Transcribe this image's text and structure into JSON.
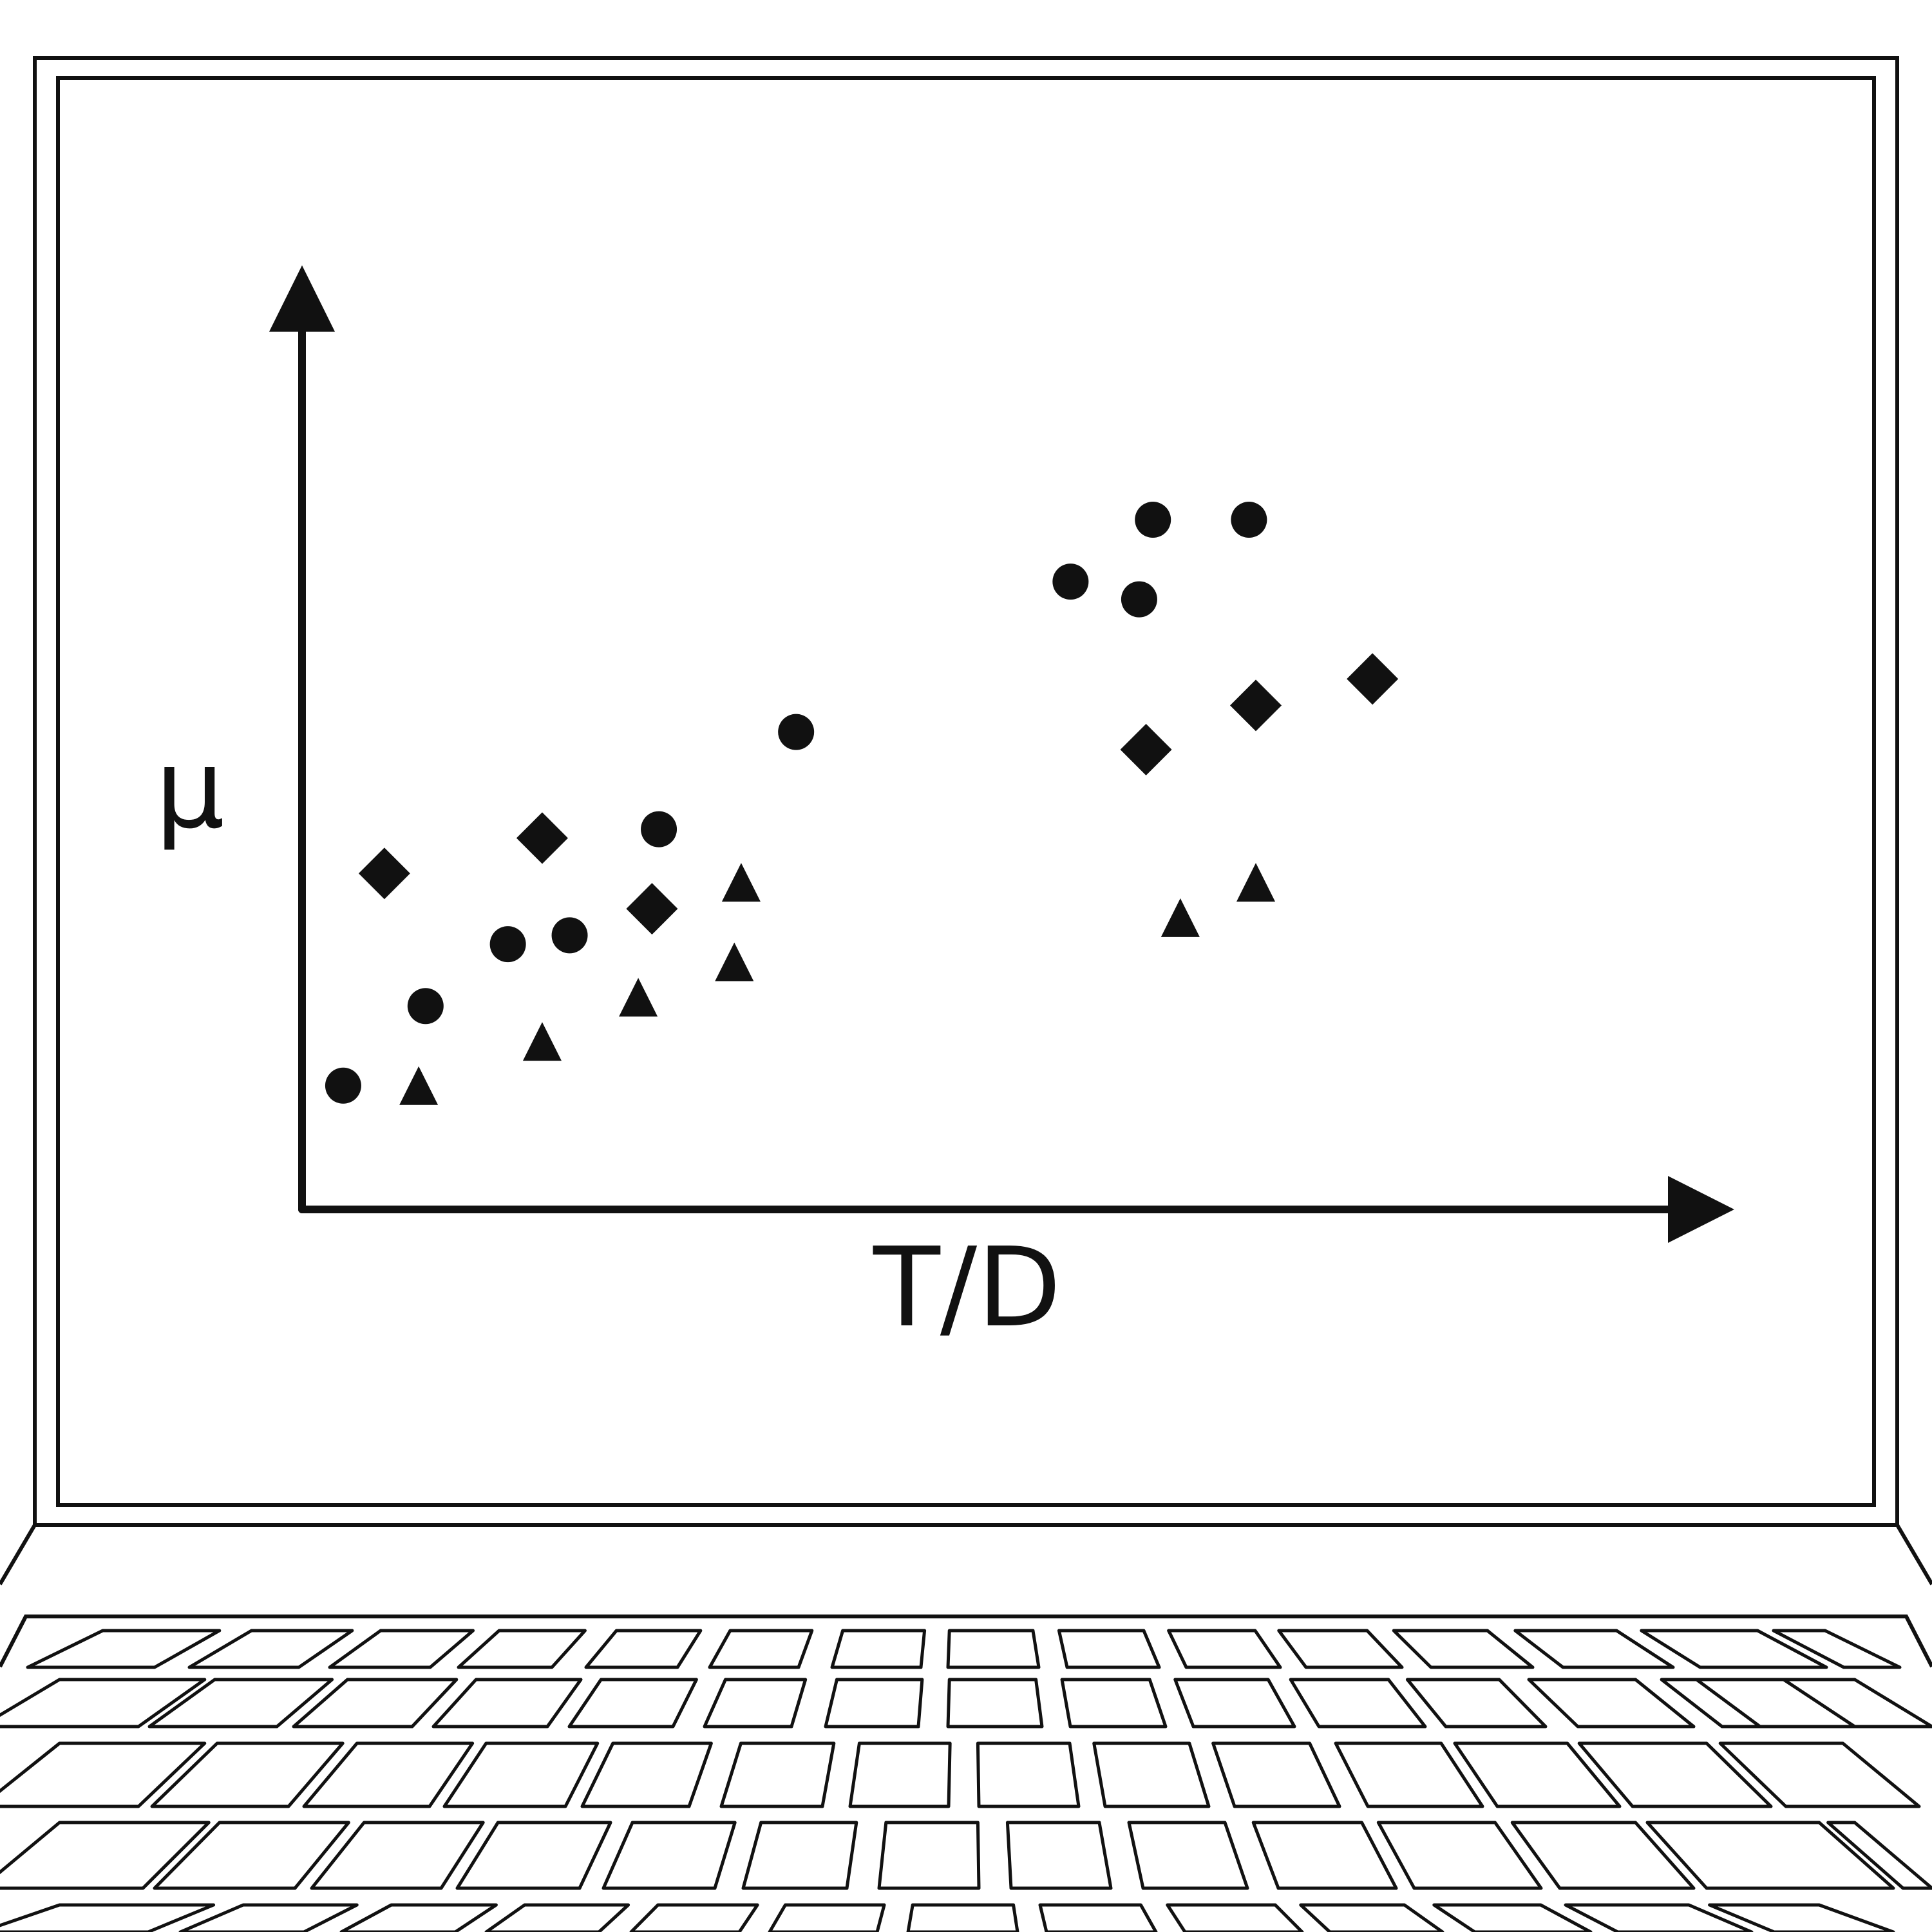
{
  "illustration": "laptop",
  "colors": {
    "ink": "#111111",
    "background": "#ffffff"
  },
  "screen": {
    "chart_data": {
      "type": "scatter",
      "xlabel": "T/D",
      "ylabel": "μ",
      "title": "",
      "grid": false,
      "legend": "none",
      "axis_ticks": false,
      "xlim": [
        0,
        10
      ],
      "ylim": [
        0,
        10
      ],
      "series": [
        {
          "marker": "circle",
          "points": [
            [
              0.3,
              1.4
            ],
            [
              0.9,
              2.3
            ],
            [
              1.5,
              3.0
            ],
            [
              1.95,
              3.1
            ],
            [
              2.6,
              4.3
            ],
            [
              3.6,
              5.4
            ],
            [
              5.6,
              7.1
            ],
            [
              6.1,
              6.9
            ],
            [
              6.2,
              7.8
            ],
            [
              6.9,
              7.8
            ]
          ]
        },
        {
          "marker": "diamond",
          "points": [
            [
              0.6,
              3.8
            ],
            [
              1.75,
              4.2
            ],
            [
              2.55,
              3.4
            ],
            [
              6.15,
              5.2
            ],
            [
              6.95,
              5.7
            ],
            [
              7.8,
              6.0
            ]
          ]
        },
        {
          "marker": "triangle",
          "points": [
            [
              0.85,
              1.4
            ],
            [
              1.75,
              1.9
            ],
            [
              2.45,
              2.4
            ],
            [
              3.15,
              2.8
            ],
            [
              3.2,
              3.7
            ],
            [
              6.4,
              3.3
            ],
            [
              6.95,
              3.7
            ]
          ]
        }
      ]
    }
  },
  "keyboard": {
    "rows": [
      {
        "y": [
          2532,
          2589
        ],
        "keys": [
          [
            43,
            240
          ],
          [
            294,
            464
          ],
          [
            512,
            668
          ],
          [
            712,
            857
          ],
          [
            910,
            1052
          ],
          [
            1102,
            1240
          ],
          [
            1292,
            1430
          ],
          [
            1472,
            1613
          ],
          [
            1657,
            1800
          ],
          [
            1842,
            1988
          ],
          [
            2028,
            2177
          ],
          [
            2222,
            2380
          ],
          [
            2427,
            2598
          ],
          [
            2640,
            2836
          ],
          [
            2863,
            2950
          ]
        ]
      },
      {
        "y": [
          2608,
          2681
        ],
        "keys": [
          [
            -30,
            215
          ],
          [
            232,
            430
          ],
          [
            456,
            640
          ],
          [
            673,
            850
          ],
          [
            884,
            1045
          ],
          [
            1094,
            1229
          ],
          [
            1282,
            1426
          ],
          [
            1472,
            1618
          ],
          [
            1662,
            1810
          ],
          [
            1853,
            2010
          ],
          [
            2048,
            2213
          ],
          [
            2245,
            2400
          ],
          [
            2450,
            2630
          ],
          [
            2674,
            2880
          ],
          [
            2733,
            3000
          ]
        ]
      },
      {
        "y": [
          2707,
          2805
        ],
        "keys": [
          [
            -30,
            215
          ],
          [
            236,
            448
          ],
          [
            472,
            667
          ],
          [
            690,
            878
          ],
          [
            904,
            1070
          ],
          [
            1120,
            1277
          ],
          [
            1320,
            1473
          ],
          [
            1520,
            1675
          ],
          [
            1716,
            1877
          ],
          [
            1917,
            2080
          ],
          [
            2124,
            2302
          ],
          [
            2325,
            2515
          ],
          [
            2535,
            2750
          ],
          [
            2773,
            2980
          ]
        ]
      },
      {
        "y": [
          2830,
          2932
        ],
        "keys": [
          [
            -30,
            222
          ],
          [
            240,
            458
          ],
          [
            484,
            685
          ],
          [
            710,
            900
          ],
          [
            937,
            1110
          ],
          [
            1154,
            1315
          ],
          [
            1365,
            1520
          ],
          [
            1570,
            1725
          ],
          [
            1775,
            1937
          ],
          [
            1985,
            2168
          ],
          [
            2196,
            2393
          ],
          [
            2422,
            2630
          ],
          [
            2650,
            2940
          ],
          [
            2955,
            3000
          ]
        ]
      },
      {
        "y": [
          2958,
          3000
        ],
        "keys": [
          [
            -30,
            230
          ],
          [
            280,
            472
          ],
          [
            530,
            707
          ],
          [
            755,
            930
          ],
          [
            980,
            1148
          ],
          [
            1195,
            1362
          ],
          [
            1410,
            1580
          ],
          [
            1625,
            1795
          ],
          [
            1840,
            2022
          ],
          [
            2065,
            2240
          ],
          [
            2290,
            2470
          ],
          [
            2512,
            2720
          ],
          [
            2755,
            2940
          ]
        ]
      }
    ]
  }
}
